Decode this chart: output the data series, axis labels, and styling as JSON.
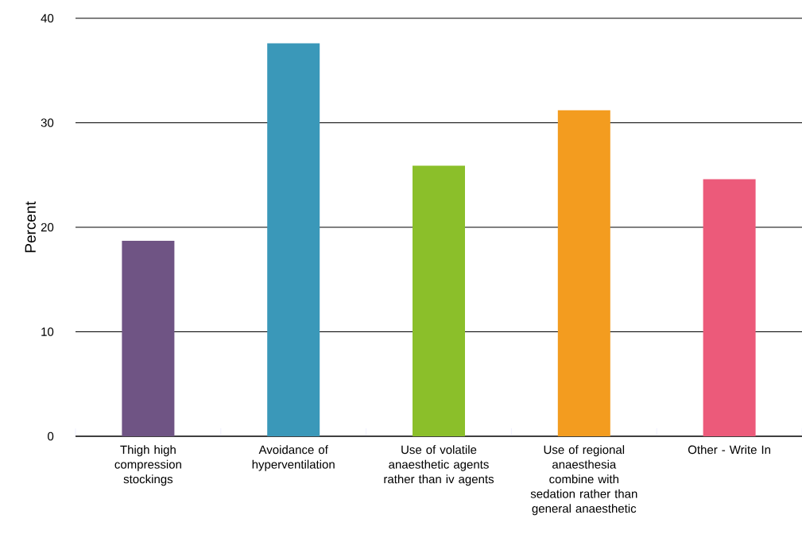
{
  "chart_data": {
    "type": "bar",
    "ylabel": "Percent",
    "categories": [
      "Thigh high compression stockings",
      "Avoidance of hyperventilation",
      "Use of volatile anaesthetic agents rather than iv agents",
      "Use of regional anaesthesia combine with sedation rather than general anaesthetic",
      "Other - Write In"
    ],
    "values": [
      18.7,
      37.6,
      25.9,
      31.2,
      24.6
    ],
    "colors": [
      "#6f5484",
      "#3a98b9",
      "#8bbf2a",
      "#f39c1f",
      "#ec5a7a"
    ],
    "ylim": [
      0,
      40
    ],
    "yticks": [
      0,
      10,
      20,
      30,
      40
    ],
    "grid": "y"
  }
}
